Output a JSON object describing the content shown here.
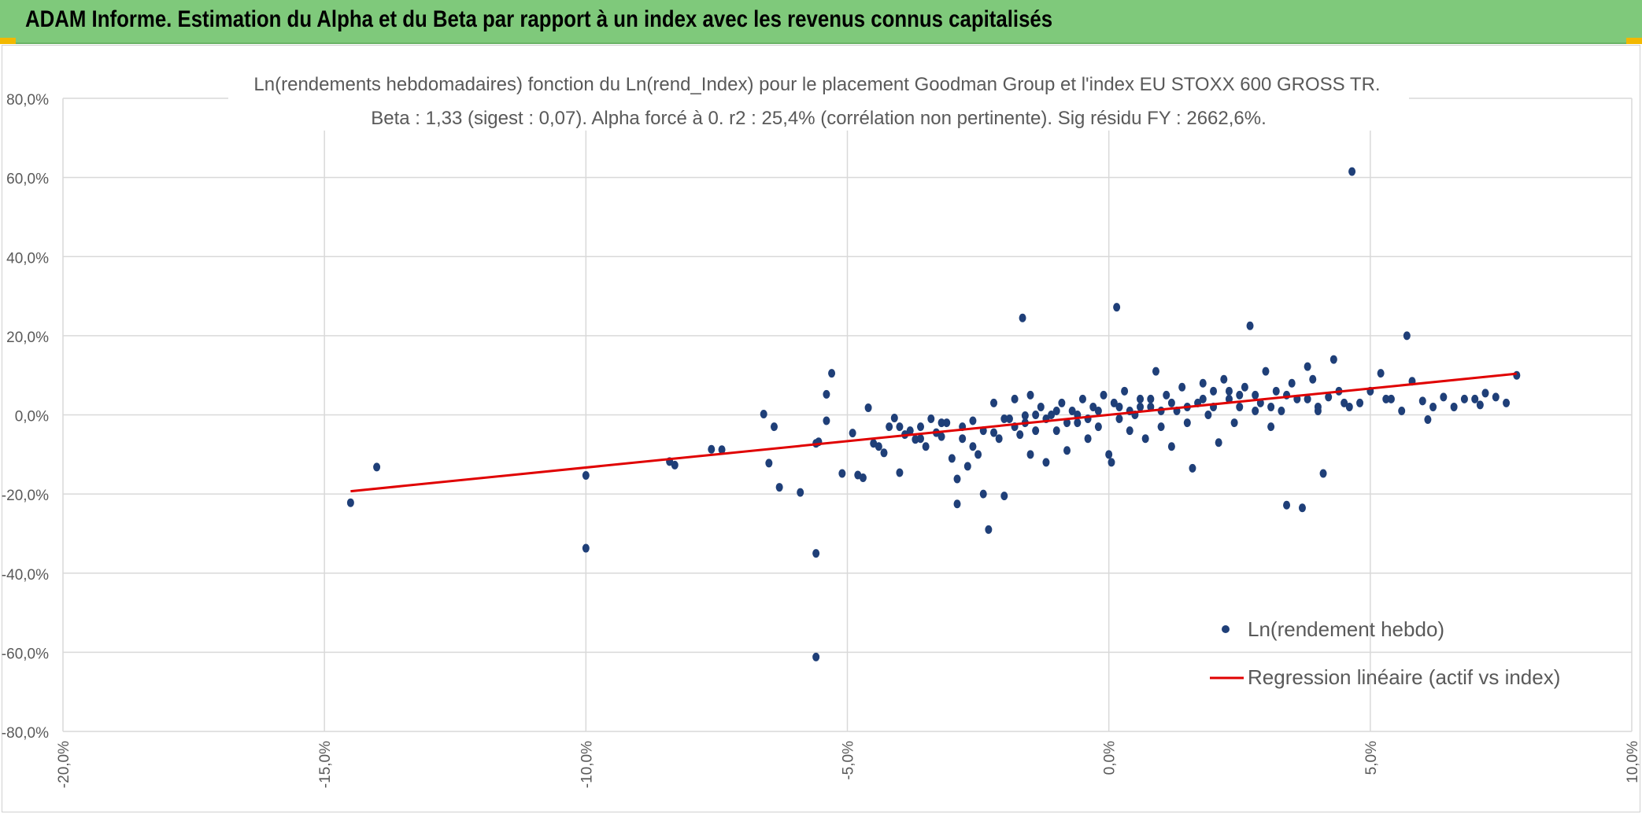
{
  "banner": {
    "title": "ADAM Informe. Estimation du Alpha et du Beta par rapport à un index avec les revenus connus capitalisés"
  },
  "colors": {
    "banner": "#7fc97b",
    "points": "#1f3f78",
    "regression": "#e00000",
    "grid": "#d9d9d9",
    "accent": "#f2b800"
  },
  "chart_data": {
    "type": "scatter",
    "title": "Ln(rendements hebdomadaires) fonction du Ln(rend_Index) pour le placement Goodman Group et l'index EU STOXX 600 GROSS TR.",
    "subtitle": "Beta : 1,33 (sigest : 0,07). Alpha forcé à 0. r2 : 25,4% (corrélation non pertinente). Sig résidu FY : 2662,6%.",
    "xlim": [
      -0.2,
      0.1
    ],
    "ylim": [
      -0.8,
      0.8
    ],
    "x_ticks": [
      "-20,0%",
      "-15,0%",
      "-10,0%",
      "-5,0%",
      "0,0%",
      "5,0%",
      "10,0%"
    ],
    "y_ticks": [
      "80,0%",
      "60,0%",
      "40,0%",
      "20,0%",
      "0,0%",
      "-20,0%",
      "-40,0%",
      "-60,0%",
      "-80,0%"
    ],
    "grid": true,
    "legend_position": "bottom-right",
    "series": [
      {
        "name": "Ln(rendement hebdo)",
        "kind": "scatter",
        "points": [
          [
            -0.145,
            -0.222
          ],
          [
            -0.14,
            -0.132
          ],
          [
            -0.1,
            -0.153
          ],
          [
            -0.1,
            -0.337
          ],
          [
            -0.084,
            -0.118
          ],
          [
            -0.083,
            -0.127
          ],
          [
            -0.076,
            -0.087
          ],
          [
            -0.074,
            -0.088
          ],
          [
            -0.066,
            0.002
          ],
          [
            -0.065,
            -0.122
          ],
          [
            -0.064,
            -0.03
          ],
          [
            -0.063,
            -0.183
          ],
          [
            -0.059,
            -0.196
          ],
          [
            -0.056,
            -0.072
          ],
          [
            -0.0555,
            -0.068
          ],
          [
            -0.056,
            -0.35
          ],
          [
            -0.056,
            -0.612
          ],
          [
            -0.054,
            -0.015
          ],
          [
            -0.054,
            0.052
          ],
          [
            -0.053,
            0.105
          ],
          [
            -0.051,
            -0.148
          ],
          [
            -0.049,
            -0.046
          ],
          [
            -0.048,
            -0.152
          ],
          [
            -0.047,
            -0.159
          ],
          [
            -0.046,
            0.018
          ],
          [
            -0.045,
            -0.072
          ],
          [
            -0.044,
            -0.08
          ],
          [
            -0.043,
            -0.096
          ],
          [
            -0.042,
            -0.03
          ],
          [
            -0.041,
            -0.008
          ],
          [
            -0.04,
            -0.146
          ],
          [
            -0.039,
            -0.05
          ],
          [
            -0.038,
            -0.04
          ],
          [
            -0.037,
            -0.062
          ],
          [
            -0.036,
            -0.03
          ],
          [
            -0.035,
            -0.08
          ],
          [
            -0.034,
            -0.01
          ],
          [
            -0.033,
            -0.045
          ],
          [
            -0.032,
            -0.055
          ],
          [
            -0.031,
            -0.02
          ],
          [
            -0.03,
            -0.11
          ],
          [
            -0.029,
            -0.162
          ],
          [
            -0.029,
            -0.225
          ],
          [
            -0.028,
            -0.06
          ],
          [
            -0.027,
            -0.13
          ],
          [
            -0.026,
            -0.08
          ],
          [
            -0.026,
            -0.015
          ],
          [
            -0.025,
            -0.1
          ],
          [
            -0.024,
            -0.2
          ],
          [
            -0.023,
            -0.29
          ],
          [
            -0.022,
            -0.045
          ],
          [
            -0.022,
            0.03
          ],
          [
            -0.021,
            -0.06
          ],
          [
            -0.02,
            -0.205
          ],
          [
            -0.019,
            -0.01
          ],
          [
            -0.018,
            0.04
          ],
          [
            -0.017,
            -0.05
          ],
          [
            -0.0165,
            0.245
          ],
          [
            -0.016,
            -0.002
          ],
          [
            -0.015,
            -0.1
          ],
          [
            -0.015,
            0.05
          ],
          [
            -0.014,
            -0.04
          ],
          [
            -0.013,
            0.02
          ],
          [
            -0.012,
            -0.12
          ],
          [
            -0.011,
            0.0
          ],
          [
            -0.01,
            -0.04
          ],
          [
            -0.009,
            0.03
          ],
          [
            -0.008,
            -0.09
          ],
          [
            -0.007,
            0.01
          ],
          [
            -0.006,
            -0.02
          ],
          [
            -0.005,
            0.04
          ],
          [
            -0.004,
            -0.06
          ],
          [
            -0.003,
            0.02
          ],
          [
            -0.002,
            -0.03
          ],
          [
            -0.001,
            0.05
          ],
          [
            0.0,
            -0.1
          ],
          [
            0.0005,
            -0.12
          ],
          [
            0.001,
            0.03
          ],
          [
            0.0015,
            0.272
          ],
          [
            0.002,
            -0.01
          ],
          [
            0.003,
            0.06
          ],
          [
            0.004,
            -0.04
          ],
          [
            0.005,
            0.0
          ],
          [
            0.006,
            0.04
          ],
          [
            0.007,
            -0.06
          ],
          [
            0.008,
            0.02
          ],
          [
            0.009,
            0.11
          ],
          [
            0.01,
            -0.03
          ],
          [
            0.011,
            0.05
          ],
          [
            0.012,
            -0.08
          ],
          [
            0.013,
            0.01
          ],
          [
            0.014,
            0.07
          ],
          [
            0.015,
            -0.02
          ],
          [
            0.016,
            -0.135
          ],
          [
            0.017,
            0.03
          ],
          [
            0.018,
            0.08
          ],
          [
            0.019,
            0.0
          ],
          [
            0.02,
            0.06
          ],
          [
            0.021,
            -0.07
          ],
          [
            0.022,
            0.09
          ],
          [
            0.023,
            0.04
          ],
          [
            0.024,
            -0.02
          ],
          [
            0.025,
            0.05
          ],
          [
            0.026,
            0.07
          ],
          [
            0.027,
            0.225
          ],
          [
            0.028,
            0.01
          ],
          [
            0.029,
            0.03
          ],
          [
            0.03,
            0.11
          ],
          [
            0.031,
            -0.03
          ],
          [
            0.032,
            0.06
          ],
          [
            0.033,
            0.01
          ],
          [
            0.034,
            -0.228
          ],
          [
            0.035,
            0.08
          ],
          [
            0.036,
            0.04
          ],
          [
            0.037,
            -0.235
          ],
          [
            0.038,
            0.122
          ],
          [
            0.039,
            0.09
          ],
          [
            0.04,
            0.02
          ],
          [
            0.041,
            -0.148
          ],
          [
            0.042,
            0.045
          ],
          [
            0.043,
            0.14
          ],
          [
            0.044,
            0.06
          ],
          [
            0.046,
            0.02
          ],
          [
            0.048,
            0.03
          ],
          [
            0.05,
            0.06
          ],
          [
            0.052,
            0.105
          ],
          [
            0.054,
            0.04
          ],
          [
            0.056,
            0.01
          ],
          [
            0.058,
            0.085
          ],
          [
            0.06,
            0.035
          ],
          [
            0.062,
            0.02
          ],
          [
            0.064,
            0.045
          ],
          [
            0.066,
            0.02
          ],
          [
            0.068,
            0.04
          ],
          [
            0.07,
            0.04
          ],
          [
            0.072,
            0.055
          ],
          [
            0.074,
            0.045
          ],
          [
            0.076,
            0.03
          ],
          [
            0.078,
            0.1
          ],
          [
            0.0465,
            0.615
          ],
          [
            0.057,
            0.2
          ],
          [
            0.061,
            -0.012
          ],
          [
            0.071,
            0.025
          ],
          [
            0.053,
            0.04
          ],
          [
            0.045,
            0.03
          ],
          [
            0.04,
            0.01
          ],
          [
            0.038,
            0.04
          ],
          [
            0.034,
            0.05
          ],
          [
            0.031,
            0.02
          ],
          [
            0.028,
            0.05
          ],
          [
            0.025,
            0.02
          ],
          [
            0.023,
            0.06
          ],
          [
            0.02,
            0.02
          ],
          [
            0.018,
            0.04
          ],
          [
            0.015,
            0.02
          ],
          [
            0.012,
            0.03
          ],
          [
            0.01,
            0.01
          ],
          [
            0.008,
            0.04
          ],
          [
            0.006,
            0.02
          ],
          [
            0.004,
            0.01
          ],
          [
            0.002,
            0.02
          ],
          [
            -0.002,
            0.01
          ],
          [
            -0.004,
            -0.01
          ],
          [
            -0.006,
            0.0
          ],
          [
            -0.008,
            -0.02
          ],
          [
            -0.01,
            0.01
          ],
          [
            -0.012,
            -0.01
          ],
          [
            -0.014,
            0.0
          ],
          [
            -0.016,
            -0.02
          ],
          [
            -0.018,
            -0.03
          ],
          [
            -0.02,
            -0.01
          ],
          [
            -0.024,
            -0.04
          ],
          [
            -0.028,
            -0.03
          ],
          [
            -0.032,
            -0.02
          ],
          [
            -0.036,
            -0.06
          ],
          [
            -0.04,
            -0.03
          ]
        ]
      },
      {
        "name": "Regression linéaire (actif vs index)",
        "kind": "line",
        "points": [
          [
            -0.145,
            -0.193
          ],
          [
            0.078,
            0.104
          ]
        ]
      }
    ]
  }
}
